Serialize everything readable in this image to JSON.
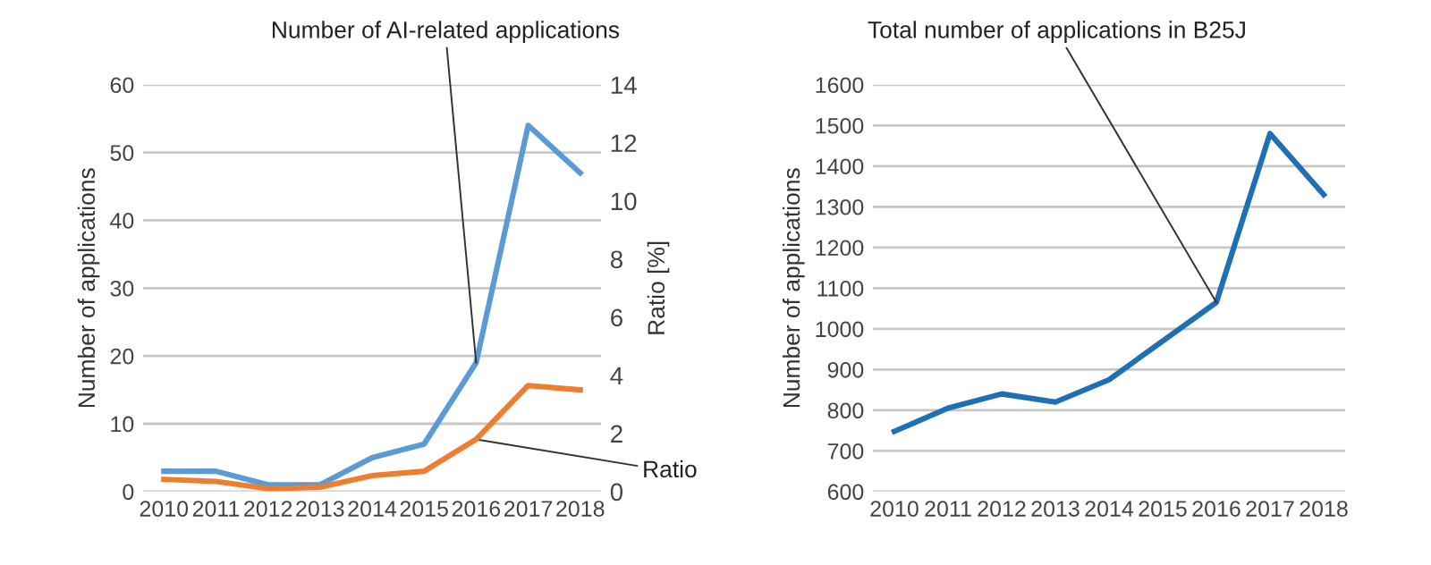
{
  "chart_data": [
    {
      "type": "line",
      "categories": [
        "2010",
        "2011",
        "2012",
        "2013",
        "2014",
        "2015",
        "2016",
        "2017",
        "2018"
      ],
      "series": [
        {
          "color": "#5b9bd5",
          "values": [
            3,
            3,
            1,
            1,
            5,
            7,
            19,
            54,
            47
          ]
        },
        {
          "color": "#ed7d31",
          "axis": "y2",
          "values": [
            0.42,
            0.35,
            0.1,
            0.15,
            0.55,
            0.7,
            1.8,
            3.65,
            3.5
          ]
        }
      ],
      "ylabel": "Number of applications",
      "y2label": "Ratio [%]",
      "ylim": [
        0,
        60
      ],
      "yticks": [
        0,
        10,
        20,
        30,
        40,
        50,
        60
      ],
      "y2lim": [
        0,
        14
      ],
      "y2ticks": [
        0,
        2,
        4,
        6,
        8,
        10,
        12,
        14
      ],
      "grid": "y",
      "legend": false,
      "marker": "none",
      "line_style": "solid",
      "annotations": [
        {
          "text": "Number of AI-related applications",
          "x": "2016",
          "y": 19
        },
        {
          "text": "Ratio",
          "x": "2016",
          "y": 7.7
        }
      ]
    },
    {
      "type": "line",
      "categories": [
        "2010",
        "2011",
        "2012",
        "2013",
        "2014",
        "2015",
        "2016",
        "2017",
        "2018"
      ],
      "series": [
        {
          "color": "#1f6fb5",
          "values": [
            748,
            805,
            840,
            820,
            875,
            970,
            1065,
            1480,
            1330
          ]
        }
      ],
      "ylabel": "Number of applications",
      "ylim": [
        600,
        1600
      ],
      "yticks": [
        600,
        700,
        800,
        900,
        1000,
        1100,
        1200,
        1300,
        1400,
        1500,
        1600
      ],
      "grid": "y",
      "legend": false,
      "marker": "none",
      "line_style": "solid",
      "annotations": [
        {
          "text": "Total number of applications in B25J",
          "x": "2016",
          "y": 1065
        }
      ]
    }
  ]
}
